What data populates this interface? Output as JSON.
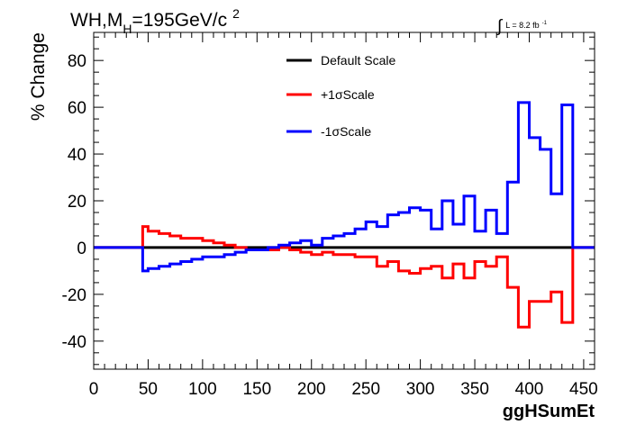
{
  "title_parts": {
    "main": "WH,M",
    "sub": "H",
    "rest": "=195GeV/c",
    "sup": "2"
  },
  "lumi_parts": {
    "integral": "∫",
    "text": "L = 8.2 fb",
    "sup": "-1"
  },
  "chart_data": {
    "type": "line",
    "xlabel": "ggHSumEt",
    "ylabel": "% Change",
    "xlim": [
      0,
      460
    ],
    "ylim": [
      -52,
      92
    ],
    "x_ticks": [
      0,
      50,
      100,
      150,
      200,
      250,
      300,
      350,
      400,
      450
    ],
    "y_ticks": [
      -40,
      -20,
      0,
      20,
      40,
      60,
      80
    ],
    "legend_position": "top-center",
    "bin_edges": [
      0,
      10,
      20,
      30,
      40,
      45,
      50,
      60,
      70,
      80,
      90,
      100,
      110,
      120,
      130,
      140,
      150,
      160,
      170,
      180,
      190,
      200,
      210,
      220,
      230,
      240,
      250,
      260,
      270,
      280,
      290,
      300,
      310,
      320,
      330,
      340,
      350,
      360,
      370,
      380,
      390,
      400,
      410,
      420,
      430,
      440,
      450,
      460
    ],
    "series": [
      {
        "name": "Default Scale",
        "color": "#000000",
        "values": [
          0,
          0,
          0,
          0,
          0,
          0,
          0,
          0,
          0,
          0,
          0,
          0,
          0,
          0,
          0,
          0,
          0,
          0,
          0,
          0,
          0,
          0,
          0,
          0,
          0,
          0,
          0,
          0,
          0,
          0,
          0,
          0,
          0,
          0,
          0,
          0,
          0,
          0,
          0,
          0,
          0,
          0,
          0,
          0,
          0,
          0,
          0
        ]
      },
      {
        "name": "+1σScale",
        "color": "#ff0000",
        "values": [
          0,
          0,
          0,
          0,
          0,
          9,
          7,
          6,
          5,
          4,
          4,
          3,
          2,
          1,
          0,
          -1,
          -1,
          -1,
          0,
          -1,
          -2,
          -3,
          -2,
          -3,
          -3,
          -4,
          -4,
          -8,
          -6,
          -10,
          -11,
          -9,
          -8,
          -13,
          -7,
          -13,
          -6,
          -8,
          -4,
          -17,
          -34,
          -23,
          -23,
          -19,
          -32,
          0,
          0
        ]
      },
      {
        "name": "-1σScale",
        "color": "#0000ff",
        "values": [
          0,
          0,
          0,
          0,
          0,
          -10,
          -9,
          -8,
          -7,
          -6,
          -5,
          -4,
          -4,
          -3,
          -2,
          -1,
          -1,
          0,
          1,
          2,
          3,
          1,
          4,
          5,
          6,
          8,
          11,
          9,
          14,
          15,
          17,
          16,
          8,
          20,
          10,
          22,
          7,
          16,
          6,
          28,
          62,
          47,
          42,
          23,
          61,
          0,
          0
        ]
      }
    ]
  }
}
